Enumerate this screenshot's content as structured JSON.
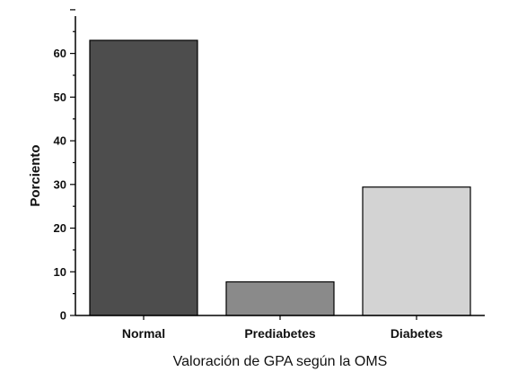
{
  "chart_data": {
    "type": "bar",
    "categories": [
      "Normal",
      "Prediabetes",
      "Diabetes"
    ],
    "values": [
      63,
      7.7,
      29.4
    ],
    "bar_colors": [
      "#4d4d4d",
      "#8a8a8a",
      "#d3d3d3"
    ],
    "xlabel": "Valoración de GPA según la OMS",
    "ylabel": "Porciento",
    "ylim": [
      0,
      70
    ],
    "yticks": [
      0,
      10,
      20,
      30,
      40,
      50,
      60
    ],
    "grid": false,
    "legend": false
  }
}
